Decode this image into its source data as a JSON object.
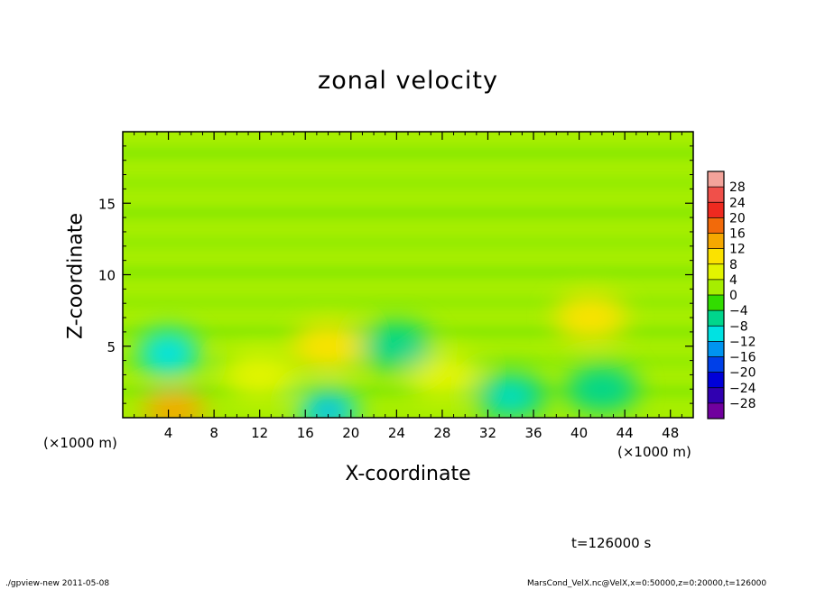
{
  "chart_data": {
    "type": "heatmap",
    "title": "zonal velocity",
    "xlabel": "X-coordinate",
    "ylabel": "Z-coordinate",
    "x_unit_left": "(×1000 m)",
    "x_unit_right": "(×1000 m)",
    "xlim": [
      0,
      50
    ],
    "ylim": [
      0,
      20
    ],
    "x_ticks": [
      4,
      8,
      12,
      16,
      20,
      24,
      28,
      32,
      36,
      40,
      44,
      48
    ],
    "y_ticks": [
      5,
      10,
      15
    ],
    "colorbar": {
      "levels": [
        28,
        24,
        20,
        16,
        12,
        8,
        4,
        0,
        -4,
        -8,
        -12,
        -16,
        -20,
        -24,
        -28
      ],
      "label_texts": [
        "28",
        "24",
        "20",
        "16",
        "12",
        "8",
        "4",
        "0",
        "−4",
        "−8",
        "−12",
        "−16",
        "−20",
        "−24",
        "−28"
      ],
      "colors": [
        "#f3a39a",
        "#f0504a",
        "#ee2a20",
        "#f26a0a",
        "#f5a800",
        "#fbe200",
        "#e2f400",
        "#a6ee00",
        "#32dc00",
        "#00d68c",
        "#00e2e2",
        "#0094f0",
        "#0040e8",
        "#0000d8",
        "#3000b0",
        "#70009e"
      ]
    },
    "features": [
      {
        "x": 4.5,
        "z": 0.5,
        "value": 12
      },
      {
        "x": 4.0,
        "z": 4.5,
        "value": -10
      },
      {
        "x": 18.0,
        "z": 0.5,
        "value": -12
      },
      {
        "x": 18.0,
        "z": 5.0,
        "value": 9
      },
      {
        "x": 41.0,
        "z": 7.0,
        "value": 8
      },
      {
        "x": 12.0,
        "z": 3.0,
        "value": 5
      },
      {
        "x": 28.0,
        "z": 3.0,
        "value": 4
      },
      {
        "x": 34.0,
        "z": 1.5,
        "value": -7
      },
      {
        "x": 24.0,
        "z": 5.0,
        "value": -6
      },
      {
        "x": 42.0,
        "z": 2.0,
        "value": -5
      }
    ],
    "background_value": 2
  },
  "annotations": {
    "time": "t=126000 s",
    "footer_left": "./gpview-new  2011-05-08",
    "footer_right": "MarsCond_VelX.nc@VelX,x=0:50000,z=0:20000,t=126000"
  }
}
